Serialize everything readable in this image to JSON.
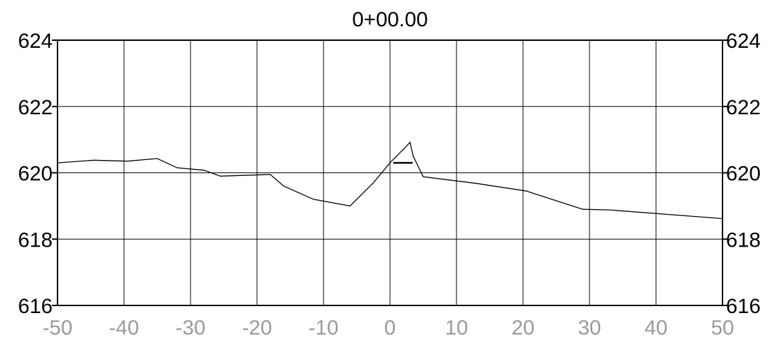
{
  "chart_data": {
    "type": "line",
    "title": "0+00.00",
    "xlabel": "",
    "ylabel": "",
    "xlim": [
      -50,
      50
    ],
    "ylim": [
      616,
      624
    ],
    "x_ticks": [
      -50,
      -40,
      -30,
      -20,
      -10,
      0,
      10,
      20,
      30,
      40,
      50
    ],
    "y_ticks": [
      616,
      618,
      620,
      622,
      624
    ],
    "y_ticks_right": true,
    "grid": true,
    "colors": {
      "line": "#000000",
      "grid": "#000000",
      "x_tick_labels": "#9a9a9a",
      "y_tick_labels": "#000000"
    },
    "series": [
      {
        "x": [
          -50,
          -44.5,
          -39.5,
          -35,
          -32,
          -28,
          -25.5,
          -18,
          -16,
          -11.5,
          -6,
          -2.5,
          0,
          2.7,
          3.0,
          3.5,
          5,
          13,
          20.5,
          29,
          33,
          50
        ],
        "y": [
          620.3,
          620.38,
          620.35,
          620.43,
          620.15,
          620.08,
          619.9,
          619.95,
          619.6,
          619.2,
          619.0,
          619.7,
          620.3,
          620.85,
          620.92,
          620.5,
          619.88,
          619.68,
          619.45,
          618.9,
          618.88,
          618.62
        ]
      },
      {
        "x": [
          0.5,
          3.4
        ],
        "y": [
          620.3,
          620.3
        ]
      }
    ]
  }
}
